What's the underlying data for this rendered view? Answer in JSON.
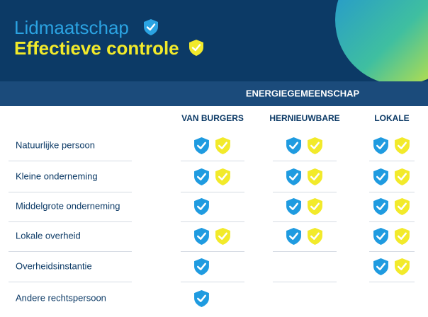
{
  "header": {
    "title_line1": "Lidmaatschap",
    "title_line2": "Effectieve controle"
  },
  "table": {
    "group": "ENERGIEGEMEENSCHAP",
    "columns": [
      "VAN BURGERS",
      "HERNIEUWBARE",
      "LOKALE"
    ],
    "rows": [
      {
        "label": "Natuurlijke persoon",
        "cells": [
          {
            "membership": true,
            "control": true
          },
          {
            "membership": true,
            "control": true
          },
          {
            "membership": true,
            "control": true
          }
        ]
      },
      {
        "label": "Kleine onderneming",
        "cells": [
          {
            "membership": true,
            "control": true
          },
          {
            "membership": true,
            "control": true
          },
          {
            "membership": true,
            "control": true
          }
        ]
      },
      {
        "label": "Middelgrote onderneming",
        "cells": [
          {
            "membership": true,
            "control": false
          },
          {
            "membership": true,
            "control": true
          },
          {
            "membership": true,
            "control": true
          }
        ]
      },
      {
        "label": "Lokale overheid",
        "cells": [
          {
            "membership": true,
            "control": true
          },
          {
            "membership": true,
            "control": true
          },
          {
            "membership": true,
            "control": true
          }
        ]
      },
      {
        "label": "Overheidsinstantie",
        "cells": [
          {
            "membership": true,
            "control": false
          },
          {
            "membership": false,
            "control": false
          },
          {
            "membership": true,
            "control": true
          }
        ]
      },
      {
        "label": "Andere rechtspersoon",
        "cells": [
          {
            "membership": true,
            "control": false
          },
          {
            "membership": false,
            "control": false
          },
          {
            "membership": false,
            "control": false
          }
        ]
      }
    ]
  }
}
